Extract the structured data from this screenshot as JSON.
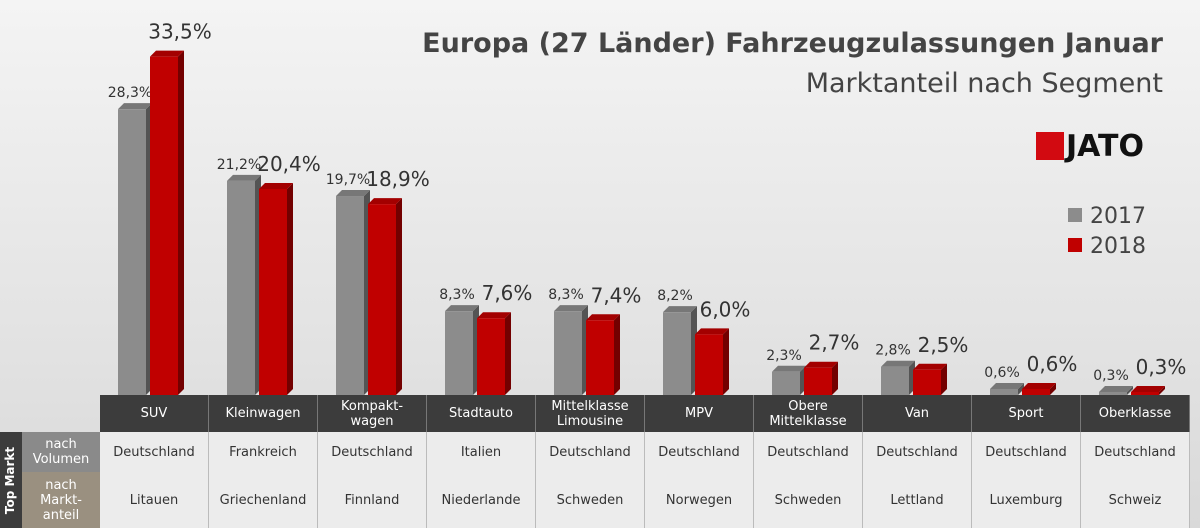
{
  "chart_data": {
    "type": "bar",
    "title": "Europa (27 Länder) Fahrzeugzulassungen Januar",
    "subtitle": "Marktanteil nach Segment",
    "logo": "JATO",
    "categories": [
      "SUV",
      "Kleinwagen",
      "Kompakt-\nwagen",
      "Stadtauto",
      "Mittelklasse\nLimousine",
      "MPV",
      "Obere\nMittelklasse",
      "Van",
      "Sport",
      "Oberklasse"
    ],
    "series": [
      {
        "name": "2017",
        "color": "#8c8c8c",
        "values": [
          28.3,
          21.2,
          19.7,
          8.3,
          8.3,
          8.2,
          2.3,
          2.8,
          0.6,
          0.3
        ],
        "value_labels": [
          "28,3%",
          "21,2%",
          "19,7%",
          "8,3%",
          "8,3%",
          "8,2%",
          "2,3%",
          "2,8%",
          "0,6%",
          "0,3%"
        ]
      },
      {
        "name": "2018",
        "color": "#c00000",
        "values": [
          33.5,
          20.4,
          18.9,
          7.6,
          7.4,
          6.0,
          2.7,
          2.5,
          0.6,
          0.3
        ],
        "value_labels": [
          "33,5%",
          "20,4%",
          "18,9%",
          "7,6%",
          "7,4%",
          "6,0%",
          "2,7%",
          "2,5%",
          "0,6%",
          "0,3%"
        ]
      }
    ]
  },
  "table": {
    "side_label": "Top Markt",
    "rows": [
      {
        "label": "nach\nVolumen",
        "cells": [
          "Deutschland",
          "Frankreich",
          "Deutschland",
          "Italien",
          "Deutschland",
          "Deutschland",
          "Deutschland",
          "Deutschland",
          "Deutschland",
          "Deutschland"
        ]
      },
      {
        "label": "nach\nMarkt-\nanteil",
        "cells": [
          "Litauen",
          "Griechenland",
          "Finnland",
          "Niederlande",
          "Schweden",
          "Norwegen",
          "Schweden",
          "Lettland",
          "Luxemburg",
          "Schweiz"
        ]
      }
    ]
  }
}
